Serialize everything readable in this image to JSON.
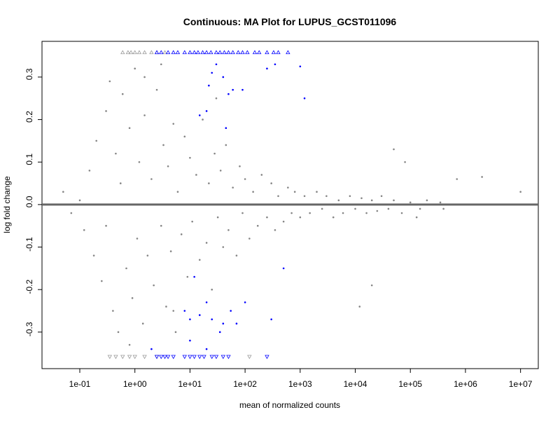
{
  "chart_data": {
    "type": "scatter",
    "title": "Continuous: MA Plot for LUPUS_GCST011096",
    "xlabel": "mean of normalized counts",
    "ylabel": "log fold change",
    "xscale": "log",
    "xlim": [
      0.0206,
      21000000
    ],
    "ylim": [
      -0.386,
      0.384
    ],
    "xticks": [
      {
        "value": 0.1,
        "label": "1e-01"
      },
      {
        "value": 1,
        "label": "1e+00"
      },
      {
        "value": 10,
        "label": "1e+01"
      },
      {
        "value": 100,
        "label": "1e+02"
      },
      {
        "value": 1000,
        "label": "1e+03"
      },
      {
        "value": 10000,
        "label": "1e+04"
      },
      {
        "value": 100000,
        "label": "1e+05"
      },
      {
        "value": 1000000,
        "label": "1e+06"
      },
      {
        "value": 10000000,
        "label": "1e+07"
      }
    ],
    "yticks": [
      -0.3,
      -0.2,
      -0.1,
      {
        "value": 0,
        "label": "0.0"
      },
      0.1,
      0.2,
      0.3
    ],
    "hline": 0,
    "hline_color": "#666666",
    "series": [
      {
        "marker": "circle",
        "color": "#858585",
        "x": [
          0.05,
          0.07,
          0.1,
          0.12,
          0.15,
          0.18,
          0.2,
          0.25,
          0.3,
          0.3,
          0.35,
          0.4,
          0.45,
          0.5,
          0.55,
          0.6,
          0.7,
          0.8,
          0.9,
          1,
          1.1,
          1.2,
          1.4,
          1.5,
          1.7,
          2,
          2.2,
          2.5,
          3,
          3.3,
          3.7,
          4,
          4.5,
          5,
          5.5,
          6,
          7,
          8,
          9,
          10,
          11,
          13,
          15,
          17,
          20,
          22,
          25,
          28,
          32,
          36,
          40,
          45,
          50,
          60,
          70,
          80,
          90,
          100,
          120,
          140,
          170,
          200,
          250,
          300,
          350,
          400,
          500,
          600,
          700,
          800,
          1000,
          1200,
          1500,
          2000,
          2500,
          3000,
          4000,
          5000,
          6000,
          8000,
          10000,
          13000,
          16000,
          20000,
          25000,
          30000,
          40000,
          50000,
          70000,
          100000,
          150000,
          200000,
          350000,
          700000,
          2000000,
          10000000,
          400000,
          130000,
          50000,
          80000,
          20000,
          12000,
          30,
          5,
          1.5,
          0.8,
          3
        ],
        "values": [
          0.03,
          -0.02,
          0.01,
          -0.06,
          0.08,
          -0.12,
          0.15,
          -0.18,
          0.22,
          -0.05,
          0.29,
          -0.25,
          0.12,
          -0.3,
          0.05,
          0.26,
          -0.15,
          0.18,
          -0.22,
          0.32,
          -0.08,
          0.1,
          -0.28,
          0.21,
          -0.12,
          0.06,
          -0.19,
          0.27,
          -0.05,
          0.14,
          -0.24,
          0.09,
          -0.11,
          0.19,
          -0.3,
          0.03,
          -0.07,
          0.16,
          -0.17,
          0.11,
          -0.04,
          0.07,
          -0.13,
          0.2,
          -0.09,
          0.05,
          -0.2,
          0.12,
          -0.03,
          0.08,
          -0.1,
          0.14,
          -0.06,
          0.04,
          -0.12,
          0.09,
          -0.02,
          0.06,
          -0.08,
          0.03,
          -0.05,
          0.07,
          -0.03,
          0.05,
          -0.06,
          0.02,
          -0.04,
          0.04,
          -0.02,
          0.03,
          -0.03,
          0.02,
          -0.02,
          0.03,
          -0.01,
          0.02,
          -0.03,
          0.01,
          -0.02,
          0.02,
          -0.01,
          0.015,
          -0.02,
          0.01,
          -0.015,
          0.02,
          -0.01,
          0.01,
          -0.02,
          0.005,
          -0.01,
          0.01,
          0.005,
          0.06,
          0.065,
          0.03,
          -0.01,
          -0.03,
          0.13,
          0.1,
          -0.19,
          -0.24,
          0.25,
          -0.25,
          0.3,
          -0.33,
          0.33
        ]
      },
      {
        "marker": "circle",
        "color": "#0000ff",
        "x": [
          25,
          30,
          22,
          40,
          50,
          60,
          90,
          250,
          350,
          1000,
          1200,
          15,
          20,
          45,
          12,
          20,
          10,
          8,
          15,
          25,
          35,
          40,
          55,
          70,
          100,
          300,
          2,
          10,
          20,
          500
        ],
        "values": [
          0.31,
          0.33,
          0.28,
          0.3,
          0.26,
          0.27,
          0.27,
          0.32,
          0.33,
          0.325,
          0.25,
          0.21,
          0.22,
          0.18,
          -0.17,
          -0.23,
          -0.27,
          -0.25,
          -0.26,
          -0.27,
          -0.3,
          -0.28,
          -0.25,
          -0.28,
          -0.23,
          -0.27,
          -0.34,
          -0.32,
          -0.34,
          -0.15
        ]
      },
      {
        "marker": "triangle-up",
        "color": "#999999",
        "x": [
          0.6,
          0.75,
          0.85,
          1,
          1.2,
          1.5,
          2,
          2.5,
          3.5
        ],
        "values": [
          0.358,
          0.358,
          0.358,
          0.358,
          0.358,
          0.358,
          0.358,
          0.358,
          0.358
        ]
      },
      {
        "marker": "triangle-up",
        "color": "#0000ff",
        "x": [
          2.5,
          3,
          4,
          5,
          6,
          8,
          10,
          12,
          14,
          17,
          20,
          24,
          30,
          35,
          42,
          50,
          60,
          75,
          90,
          110,
          150,
          180,
          250,
          330,
          400,
          600
        ],
        "values": [
          0.358,
          0.358,
          0.358,
          0.358,
          0.358,
          0.358,
          0.358,
          0.358,
          0.358,
          0.358,
          0.358,
          0.358,
          0.358,
          0.358,
          0.358,
          0.358,
          0.358,
          0.358,
          0.358,
          0.358,
          0.358,
          0.358,
          0.358,
          0.358,
          0.358,
          0.358
        ]
      },
      {
        "marker": "triangle-down",
        "color": "#999999",
        "x": [
          0.35,
          0.45,
          0.6,
          0.8,
          1,
          1.5,
          2.5,
          120
        ],
        "values": [
          -0.358,
          -0.358,
          -0.358,
          -0.358,
          -0.358,
          -0.358,
          -0.358,
          -0.358
        ]
      },
      {
        "marker": "triangle-down",
        "color": "#0000ff",
        "x": [
          2.5,
          3,
          3.5,
          4,
          5,
          8,
          10,
          12,
          15,
          18,
          25,
          30,
          40,
          50,
          250
        ],
        "values": [
          -0.358,
          -0.358,
          -0.358,
          -0.358,
          -0.358,
          -0.358,
          -0.358,
          -0.358,
          -0.358,
          -0.358,
          -0.358,
          -0.358,
          -0.358,
          -0.358,
          -0.358
        ]
      }
    ]
  }
}
